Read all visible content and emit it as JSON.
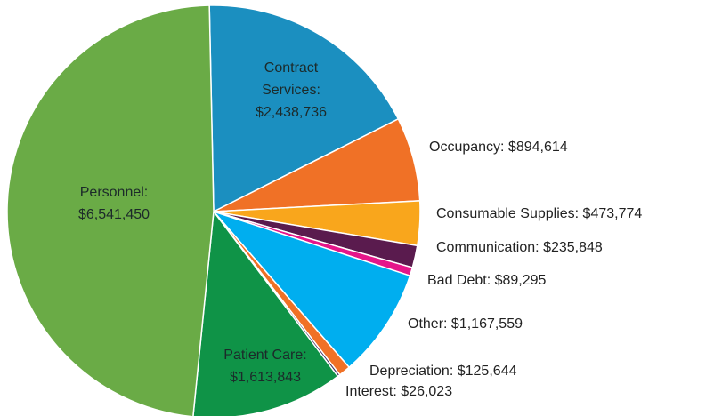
{
  "chart_data": {
    "type": "pie",
    "categories": [
      "Contract Services:",
      "Occupancy:",
      "Consumable Supplies:",
      "Communication:",
      "Bad Debt:",
      "Other:",
      "Depreciation:",
      "Interest:",
      "Patient Care:",
      "Personnel:"
    ],
    "values": [
      2438736,
      894614,
      473774,
      235848,
      89295,
      1167559,
      125644,
      26023,
      1613843,
      6541450
    ],
    "value_labels": [
      "$2,438,736",
      "$894,614",
      "$473,774",
      "$235,848",
      "$89,295",
      "$1,167,559",
      "$125,644",
      "$26,023",
      "$1,613,843",
      "$6,541,450"
    ],
    "colors": [
      "#1b8fc0",
      "#f07126",
      "#f9a61c",
      "#5a1b4e",
      "#e5168a",
      "#00aeef",
      "#f07126",
      "#3d2a5c",
      "#0f9347",
      "#6aab46"
    ]
  }
}
